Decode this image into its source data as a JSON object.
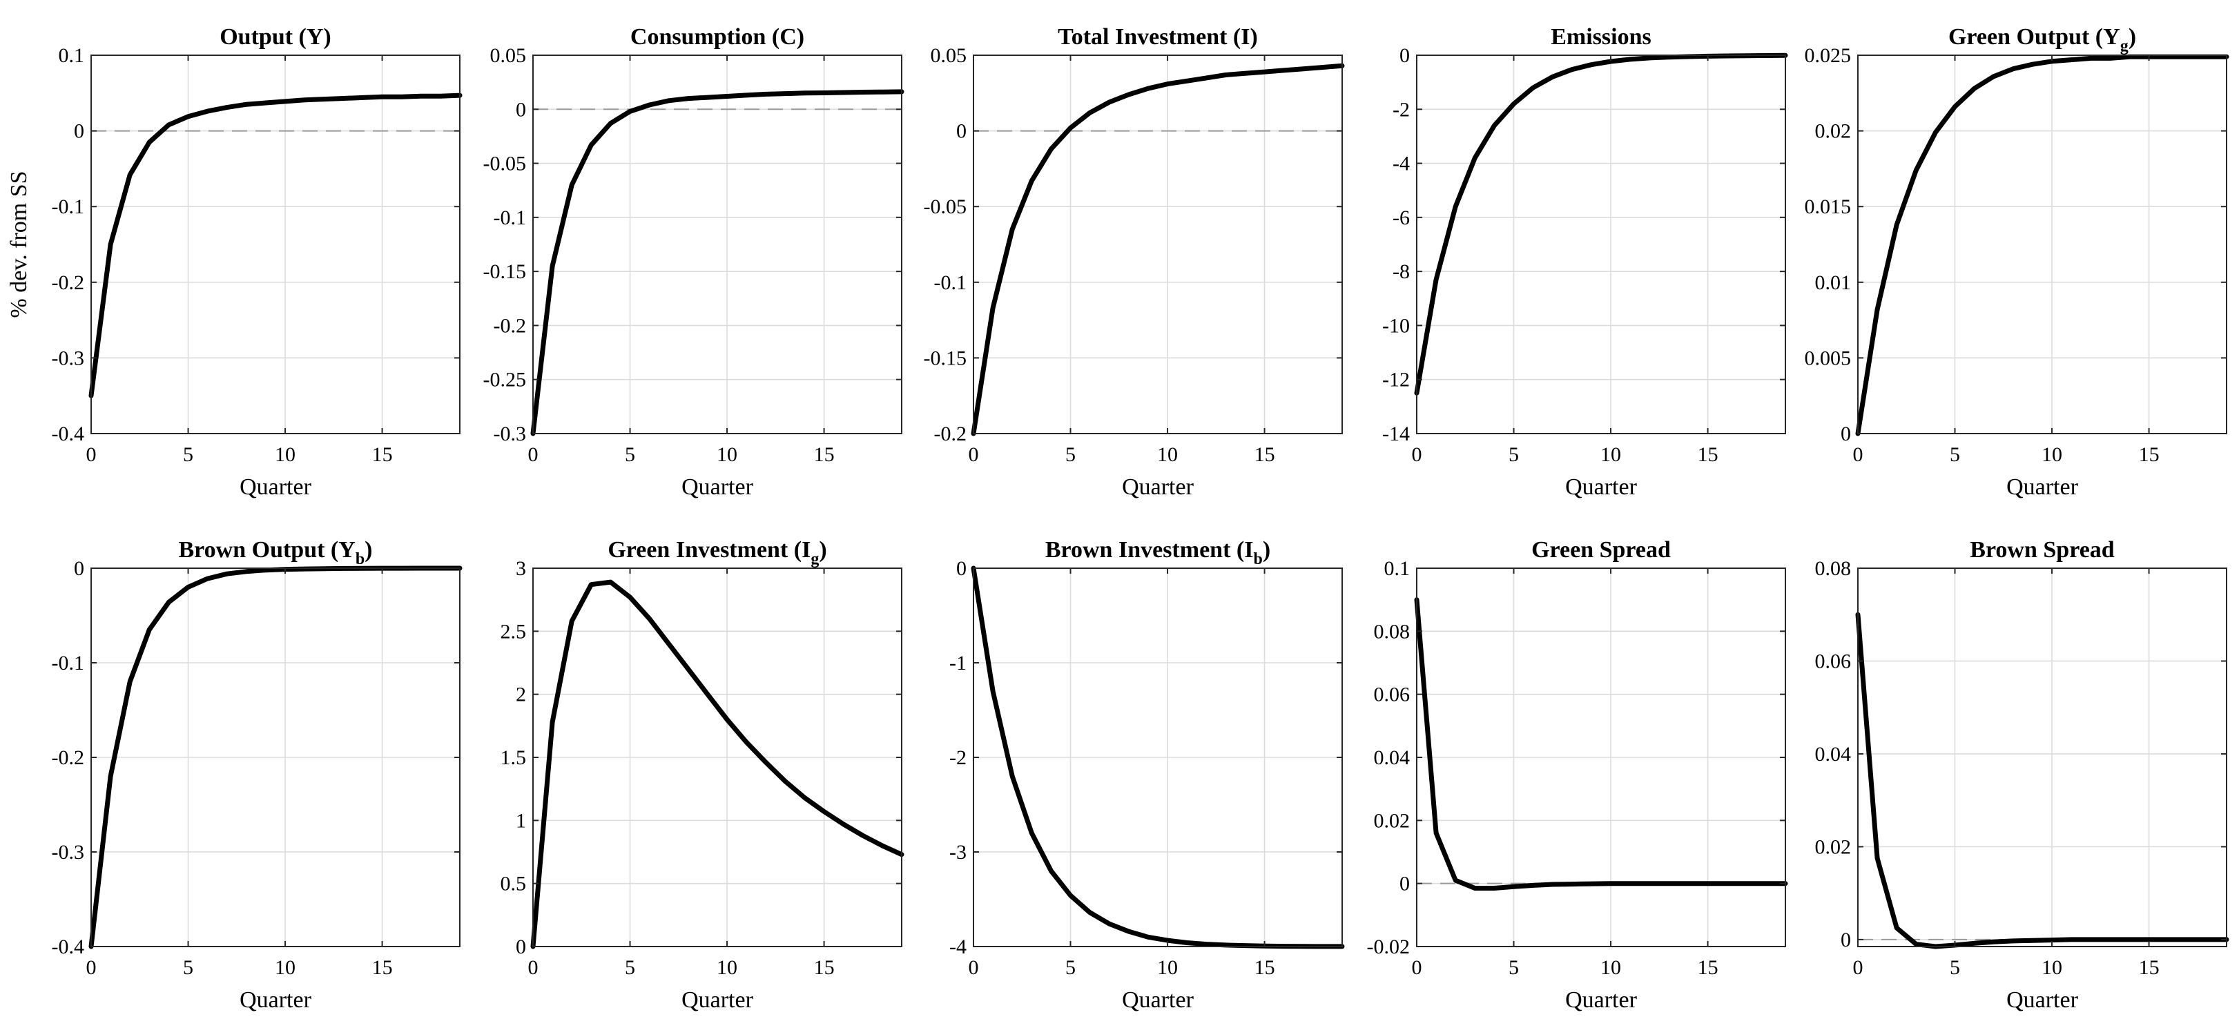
{
  "chart_data": [
    {
      "type": "line",
      "title": "Output (Y)",
      "xlabel": "Quarter",
      "ylabel": "% dev. from SS",
      "xlim": [
        0,
        19
      ],
      "ylim": [
        -0.4,
        0.1
      ],
      "xticks": [
        0,
        5,
        10,
        15
      ],
      "yticks": [
        -0.4,
        -0.3,
        -0.2,
        -0.1,
        0,
        0.1
      ],
      "ytick_labels": [
        "-0.4",
        "-0.3",
        "-0.2",
        "-0.1",
        "0",
        "0.1"
      ],
      "grid": true,
      "zero_line": true,
      "x": [
        0,
        1,
        2,
        3,
        4,
        5,
        6,
        7,
        8,
        9,
        10,
        11,
        12,
        13,
        14,
        15,
        16,
        17,
        18,
        19
      ],
      "values": [
        -0.35,
        -0.15,
        -0.058,
        -0.015,
        0.008,
        0.019,
        0.026,
        0.031,
        0.035,
        0.037,
        0.039,
        0.041,
        0.042,
        0.043,
        0.044,
        0.045,
        0.045,
        0.046,
        0.046,
        0.047
      ]
    },
    {
      "type": "line",
      "title": "Consumption (C)",
      "xlabel": "Quarter",
      "ylabel": "",
      "xlim": [
        0,
        19
      ],
      "ylim": [
        -0.3,
        0.05
      ],
      "xticks": [
        0,
        5,
        10,
        15
      ],
      "yticks": [
        -0.3,
        -0.25,
        -0.2,
        -0.15,
        -0.1,
        -0.05,
        0,
        0.05
      ],
      "ytick_labels": [
        "-0.3",
        "-0.25",
        "-0.2",
        "-0.15",
        "-0.1",
        "-0.05",
        "0",
        "0.05"
      ],
      "grid": true,
      "zero_line": true,
      "x": [
        0,
        1,
        2,
        3,
        4,
        5,
        6,
        7,
        8,
        9,
        10,
        11,
        12,
        13,
        14,
        15,
        16,
        17,
        18,
        19
      ],
      "values": [
        -0.3,
        -0.145,
        -0.07,
        -0.033,
        -0.013,
        -0.002,
        0.004,
        0.008,
        0.01,
        0.011,
        0.012,
        0.013,
        0.014,
        0.0145,
        0.015,
        0.0152,
        0.0155,
        0.0158,
        0.016,
        0.0162
      ]
    },
    {
      "type": "line",
      "title": "Total Investment (I)",
      "xlabel": "Quarter",
      "ylabel": "",
      "xlim": [
        0,
        19
      ],
      "ylim": [
        -0.2,
        0.05
      ],
      "xticks": [
        0,
        5,
        10,
        15
      ],
      "yticks": [
        -0.2,
        -0.15,
        -0.1,
        -0.05,
        0,
        0.05
      ],
      "ytick_labels": [
        "-0.2",
        "-0.15",
        "-0.1",
        "-0.05",
        "0",
        "0.05"
      ],
      "grid": true,
      "zero_line": true,
      "x": [
        0,
        1,
        2,
        3,
        4,
        5,
        6,
        7,
        8,
        9,
        10,
        11,
        12,
        13,
        14,
        15,
        16,
        17,
        18,
        19
      ],
      "values": [
        -0.2,
        -0.117,
        -0.065,
        -0.033,
        -0.012,
        0.002,
        0.012,
        0.019,
        0.024,
        0.028,
        0.031,
        0.033,
        0.035,
        0.037,
        0.038,
        0.039,
        0.04,
        0.041,
        0.042,
        0.043
      ]
    },
    {
      "type": "line",
      "title": "Emissions",
      "xlabel": "Quarter",
      "ylabel": "",
      "xlim": [
        0,
        19
      ],
      "ylim": [
        -14,
        0
      ],
      "xticks": [
        0,
        5,
        10,
        15
      ],
      "yticks": [
        -14,
        -12,
        -10,
        -8,
        -6,
        -4,
        -2,
        0
      ],
      "ytick_labels": [
        "-14",
        "-12",
        "-10",
        "-8",
        "-6",
        "-4",
        "-2",
        "0"
      ],
      "grid": true,
      "zero_line": true,
      "x": [
        0,
        1,
        2,
        3,
        4,
        5,
        6,
        7,
        8,
        9,
        10,
        11,
        12,
        13,
        14,
        15,
        16,
        17,
        18,
        19
      ],
      "values": [
        -12.5,
        -8.3,
        -5.6,
        -3.8,
        -2.6,
        -1.8,
        -1.2,
        -0.8,
        -0.53,
        -0.35,
        -0.23,
        -0.15,
        -0.1,
        -0.07,
        -0.05,
        -0.035,
        -0.025,
        -0.018,
        -0.012,
        -0.008
      ]
    },
    {
      "type": "line",
      "title": "Green Output (Y",
      "title_subscript": "g",
      "title_suffix": ")",
      "xlabel": "Quarter",
      "ylabel": "",
      "xlim": [
        0,
        19
      ],
      "ylim": [
        0,
        0.025
      ],
      "xticks": [
        0,
        5,
        10,
        15
      ],
      "yticks": [
        0,
        0.005,
        0.01,
        0.015,
        0.02,
        0.025
      ],
      "ytick_labels": [
        "0",
        "0.005",
        "0.01",
        "0.015",
        "0.02",
        "0.025"
      ],
      "grid": true,
      "zero_line": true,
      "x": [
        0,
        1,
        2,
        3,
        4,
        5,
        6,
        7,
        8,
        9,
        10,
        11,
        12,
        13,
        14,
        15,
        16,
        17,
        18,
        19
      ],
      "values": [
        0,
        0.0082,
        0.0138,
        0.0174,
        0.0199,
        0.0216,
        0.0228,
        0.0236,
        0.0241,
        0.0244,
        0.0246,
        0.0247,
        0.0248,
        0.0248,
        0.0249,
        0.0249,
        0.0249,
        0.0249,
        0.0249,
        0.0249
      ]
    },
    {
      "type": "line",
      "title": "Brown Output (Y",
      "title_subscript": "b",
      "title_suffix": ")",
      "xlabel": "Quarter",
      "ylabel": "",
      "xlim": [
        0,
        19
      ],
      "ylim": [
        -0.4,
        0
      ],
      "xticks": [
        0,
        5,
        10,
        15
      ],
      "yticks": [
        -0.4,
        -0.3,
        -0.2,
        -0.1,
        0
      ],
      "ytick_labels": [
        "-0.4",
        "-0.3",
        "-0.2",
        "-0.1",
        "0"
      ],
      "grid": true,
      "zero_line": true,
      "x": [
        0,
        1,
        2,
        3,
        4,
        5,
        6,
        7,
        8,
        9,
        10,
        11,
        12,
        13,
        14,
        15,
        16,
        17,
        18,
        19
      ],
      "values": [
        -0.4,
        -0.22,
        -0.12,
        -0.065,
        -0.036,
        -0.02,
        -0.011,
        -0.006,
        -0.0035,
        -0.002,
        -0.0012,
        -0.0008,
        -0.0005,
        -0.0003,
        -0.0002,
        -0.0001,
        -0.0001,
        0,
        0,
        0
      ]
    },
    {
      "type": "line",
      "title": "Green Investment (I",
      "title_subscript": "g",
      "title_suffix": ")",
      "xlabel": "Quarter",
      "ylabel": "",
      "xlim": [
        0,
        19
      ],
      "ylim": [
        0,
        3
      ],
      "xticks": [
        0,
        5,
        10,
        15
      ],
      "yticks": [
        0,
        0.5,
        1,
        1.5,
        2,
        2.5,
        3
      ],
      "ytick_labels": [
        "0",
        "0.5",
        "1",
        "1.5",
        "2",
        "2.5",
        "3"
      ],
      "grid": true,
      "zero_line": true,
      "x": [
        0,
        1,
        2,
        3,
        4,
        5,
        6,
        7,
        8,
        9,
        10,
        11,
        12,
        13,
        14,
        15,
        16,
        17,
        18,
        19
      ],
      "values": [
        0,
        1.78,
        2.58,
        2.87,
        2.89,
        2.77,
        2.6,
        2.4,
        2.2,
        2.0,
        1.8,
        1.62,
        1.46,
        1.31,
        1.18,
        1.07,
        0.97,
        0.88,
        0.8,
        0.73
      ]
    },
    {
      "type": "line",
      "title": "Brown Investment (I",
      "title_subscript": "b",
      "title_suffix": ")",
      "xlabel": "Quarter",
      "ylabel": "",
      "xlim": [
        0,
        19
      ],
      "ylim": [
        -4,
        0
      ],
      "xticks": [
        0,
        5,
        10,
        15
      ],
      "yticks": [
        -4,
        -3,
        -2,
        -1,
        0
      ],
      "ytick_labels": [
        "-4",
        "-3",
        "-2",
        "-1",
        "0"
      ],
      "grid": true,
      "zero_line": true,
      "x": [
        0,
        1,
        2,
        3,
        4,
        5,
        6,
        7,
        8,
        9,
        10,
        11,
        12,
        13,
        14,
        15,
        16,
        17,
        18,
        19
      ],
      "values": [
        0,
        -1.3,
        -2.2,
        -2.8,
        -3.2,
        -3.46,
        -3.64,
        -3.76,
        -3.84,
        -3.9,
        -3.935,
        -3.96,
        -3.975,
        -3.985,
        -3.99,
        -3.995,
        -3.997,
        -3.998,
        -3.999,
        -3.999
      ]
    },
    {
      "type": "line",
      "title": "Green Spread",
      "xlabel": "Quarter",
      "ylabel": "",
      "xlim": [
        0,
        19
      ],
      "ylim": [
        -0.02,
        0.1
      ],
      "xticks": [
        0,
        5,
        10,
        15
      ],
      "yticks": [
        -0.02,
        0,
        0.02,
        0.04,
        0.06,
        0.08,
        0.1
      ],
      "ytick_labels": [
        "-0.02",
        "0",
        "0.02",
        "0.04",
        "0.06",
        "0.08",
        "0.1"
      ],
      "grid": true,
      "zero_line": true,
      "x": [
        0,
        1,
        2,
        3,
        4,
        5,
        6,
        7,
        8,
        9,
        10,
        11,
        12,
        13,
        14,
        15,
        16,
        17,
        18,
        19
      ],
      "values": [
        0.09,
        0.016,
        0.001,
        -0.0015,
        -0.0015,
        -0.001,
        -0.0006,
        -0.0003,
        -0.0002,
        -0.0001,
        0,
        0,
        0,
        0,
        0,
        0,
        0,
        0,
        0,
        0
      ]
    },
    {
      "type": "line",
      "title": "Brown Spread",
      "xlabel": "Quarter",
      "ylabel": "",
      "xlim": [
        0,
        19
      ],
      "ylim": [
        -0.0015,
        0.08
      ],
      "xticks": [
        0,
        5,
        10,
        15
      ],
      "yticks": [
        0,
        0.02,
        0.04,
        0.06,
        0.08
      ],
      "ytick_labels": [
        "0",
        "0.02",
        "0.04",
        "0.06",
        "0.08"
      ],
      "grid": true,
      "zero_line": true,
      "x": [
        0,
        1,
        2,
        3,
        4,
        5,
        6,
        7,
        8,
        9,
        10,
        11,
        12,
        13,
        14,
        15,
        16,
        17,
        18,
        19
      ],
      "values": [
        0.07,
        0.0175,
        0.0025,
        -0.001,
        -0.0015,
        -0.0012,
        -0.0008,
        -0.0005,
        -0.0003,
        -0.0002,
        -0.0001,
        0,
        0,
        0,
        0,
        0,
        0,
        0,
        0,
        0
      ]
    }
  ]
}
